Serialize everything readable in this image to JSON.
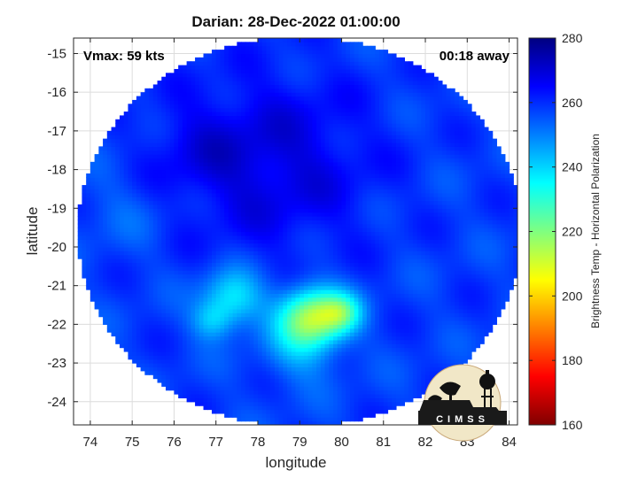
{
  "chart_data": {
    "type": "heatmap",
    "title": "Darian: 28-Dec-2022 01:00:00",
    "xlabel": "longitude",
    "ylabel": "latitude",
    "xlim": [
      73.6,
      84.2
    ],
    "ylim": [
      -24.6,
      -14.6
    ],
    "xticks": [
      74,
      75,
      76,
      77,
      78,
      79,
      80,
      81,
      82,
      83,
      84
    ],
    "yticks": [
      -15,
      -16,
      -17,
      -18,
      -19,
      -20,
      -21,
      -22,
      -23,
      -24
    ],
    "grid": true,
    "annotations": {
      "vmax": "Vmax: 59 kts",
      "away": "00:18 away"
    },
    "colorbar": {
      "label": "Brightness Temp - Horizontal Polarization",
      "range": [
        160,
        280
      ],
      "ticks": [
        160,
        180,
        200,
        220,
        240,
        260,
        280
      ],
      "colormap": "jet"
    },
    "swath": {
      "center": [
        79.0,
        -19.6
      ],
      "radius_deg": 5.3
    },
    "field": {
      "background_value": 258,
      "features": [
        {
          "name": "outer-band",
          "lon": 78.4,
          "lat": -17.8,
          "sigma": 1.6,
          "delta": 11
        },
        {
          "name": "upper-left-band",
          "lon": 76.5,
          "lat": -17.5,
          "sigma": 0.9,
          "delta": 5
        },
        {
          "name": "convective-core",
          "lon": 79.3,
          "lat": -21.8,
          "sigma": 0.55,
          "delta": -42
        },
        {
          "name": "core-east",
          "lon": 80.0,
          "lat": -21.7,
          "sigma": 0.35,
          "delta": -22
        },
        {
          "name": "southwest-band",
          "lon": 77.4,
          "lat": -21.3,
          "sigma": 0.5,
          "delta": -22
        },
        {
          "name": "far-west-band",
          "lon": 76.9,
          "lat": -21.9,
          "sigma": 0.35,
          "delta": -14
        },
        {
          "name": "south-band",
          "lon": 79.0,
          "lat": -22.7,
          "sigma": 0.6,
          "delta": -10
        },
        {
          "name": "west-edge",
          "lon": 74.8,
          "lat": -19.0,
          "sigma": 0.8,
          "delta": -4
        }
      ]
    }
  },
  "logo": {
    "text": "CIMSS"
  }
}
